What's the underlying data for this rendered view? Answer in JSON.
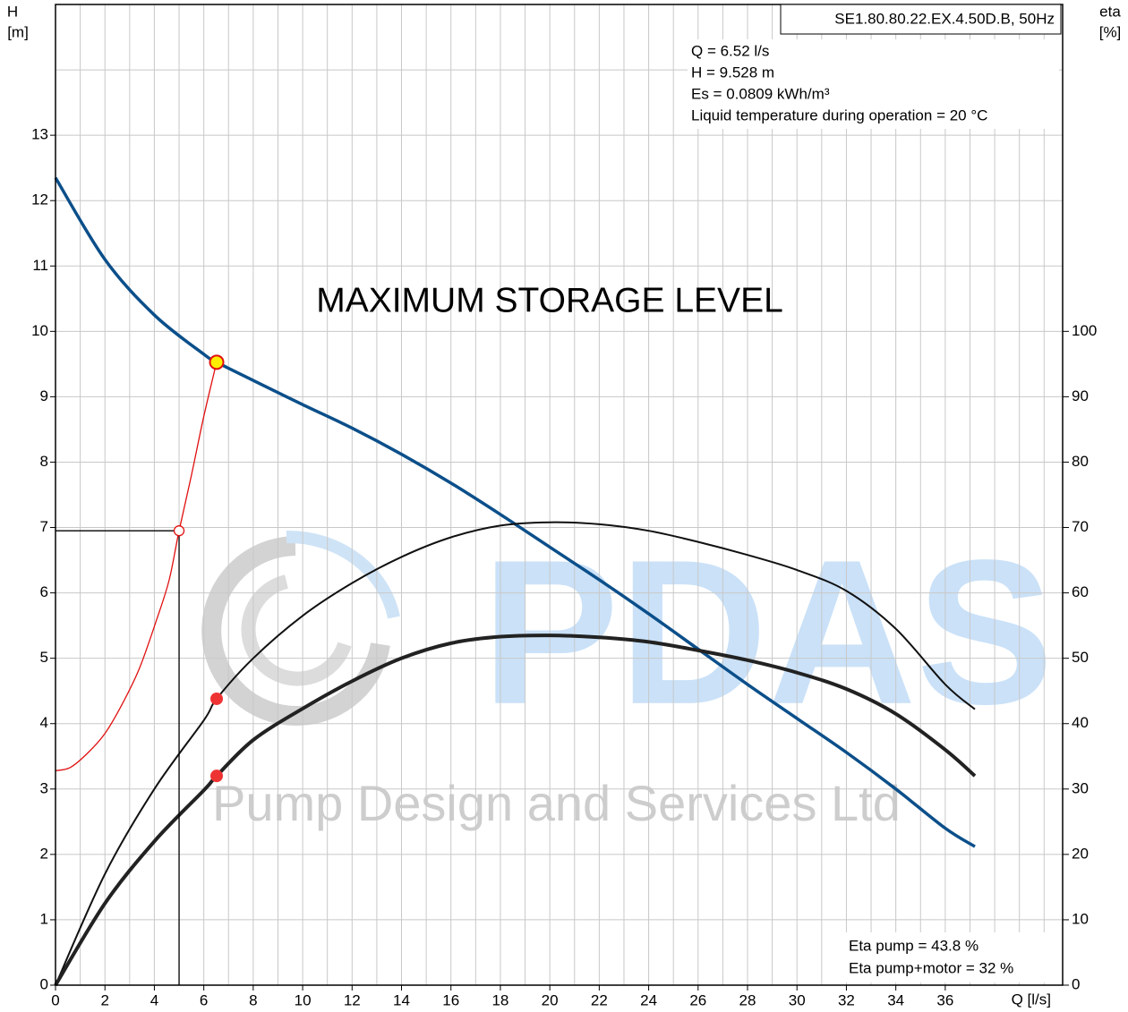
{
  "chart_data": {
    "type": "line",
    "title": "SE1.80.80.22.EX.4.50D.B, 50Hz",
    "info": [
      "Q = 6.52 l/s",
      "H = 9.528 m",
      "Es = 0.0809 kWh/m³",
      "Liquid temperature during operation = 20 °C"
    ],
    "annotation": "MAXIMUM STORAGE LEVEL",
    "efficiency_text": [
      "Eta pump = 43.8 %",
      "Eta pump+motor = 32 %"
    ],
    "watermark": [
      "PDAS",
      "Pump Design and Services Ltd"
    ],
    "ylabel": [
      "H",
      "[m]"
    ],
    "y2label": [
      "eta",
      "[%]"
    ],
    "xlabel": "Q [l/s]",
    "xlim": [
      0,
      40.75
    ],
    "ylim": [
      0,
      15
    ],
    "y2lim": [
      0,
      150
    ],
    "xticks": [
      0,
      2,
      4,
      6,
      8,
      10,
      12,
      14,
      16,
      18,
      20,
      22,
      24,
      26,
      28,
      30,
      32,
      34,
      36
    ],
    "xminorticks": [
      1,
      3,
      5,
      7,
      9,
      11,
      13,
      15,
      17,
      19,
      21,
      23,
      25,
      27,
      29,
      31,
      33,
      35,
      37,
      38,
      39,
      40
    ],
    "yticks": [
      0,
      1,
      2,
      3,
      4,
      5,
      6,
      7,
      8,
      9,
      10,
      11,
      12,
      13
    ],
    "yminorticks": [
      14
    ],
    "y2ticks": [
      0,
      10,
      20,
      30,
      40,
      50,
      60,
      70,
      80,
      90,
      100
    ],
    "grid": true,
    "series": [
      {
        "color": "#0b4f8a",
        "width": 3.5,
        "axis": "y",
        "x": [
          0,
          2,
          4,
          6,
          6.52,
          8,
          10,
          12,
          14,
          16,
          18,
          20,
          22,
          24,
          26,
          28,
          30,
          32,
          34,
          36,
          37.2
        ],
        "values": [
          12.35,
          11.1,
          10.25,
          9.65,
          9.528,
          9.25,
          8.88,
          8.52,
          8.12,
          7.68,
          7.2,
          6.7,
          6.2,
          5.68,
          5.14,
          4.6,
          4.08,
          3.56,
          3.0,
          2.4,
          2.12
        ]
      },
      {
        "color": "#111111",
        "width": 2,
        "axis": "y2",
        "x": [
          0,
          2,
          4,
          6,
          6.52,
          8,
          10,
          12,
          14,
          16,
          18,
          20,
          22,
          24,
          26,
          28,
          30,
          32,
          34,
          36,
          37.2
        ],
        "values": [
          0,
          17,
          30,
          40.5,
          43.8,
          50,
          56.5,
          61.5,
          65.5,
          68.5,
          70.3,
          70.8,
          70.5,
          69.5,
          67.8,
          65.8,
          63.5,
          60.3,
          54.5,
          46,
          42.2
        ]
      },
      {
        "color": "#222222",
        "width": 4,
        "axis": "y2",
        "x": [
          0,
          2,
          4,
          6,
          6.52,
          8,
          10,
          12,
          14,
          16,
          18,
          20,
          22,
          24,
          26,
          28,
          30,
          32,
          34,
          36,
          37.2
        ],
        "values": [
          0,
          12.5,
          22,
          29.8,
          32,
          37.5,
          42.3,
          46.5,
          50,
          52.3,
          53.3,
          53.5,
          53.2,
          52.5,
          51.2,
          49.7,
          47.8,
          45.3,
          41.5,
          36,
          32
        ]
      },
      {
        "color": "#e01010",
        "width": 1.3,
        "axis": "y",
        "x": [
          0,
          0.6,
          1.3,
          2,
          2.7,
          3.4,
          4.1,
          4.6,
          5,
          5.5,
          6,
          6.52
        ],
        "values": [
          3.28,
          3.33,
          3.55,
          3.85,
          4.3,
          4.85,
          5.6,
          6.2,
          6.95,
          7.8,
          8.7,
          9.53
        ]
      }
    ],
    "reference_point": {
      "x": 5,
      "y": 6.95
    },
    "operating_point": {
      "x": 6.52,
      "y": 9.528,
      "eta_pump": 43.8,
      "eta_total": 32
    }
  }
}
